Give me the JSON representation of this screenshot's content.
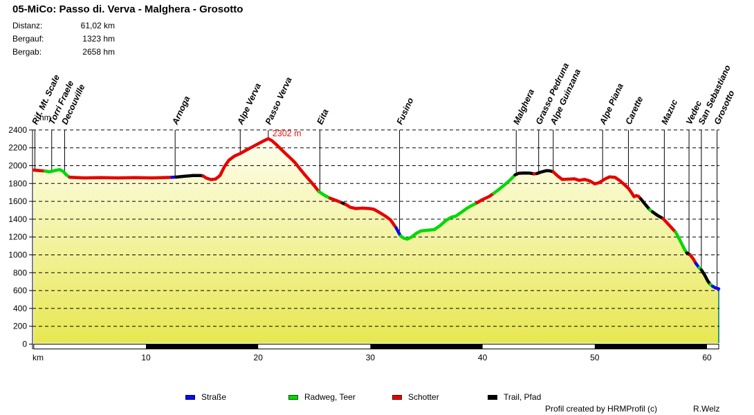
{
  "header": {
    "title": "05-MiCo: Passo di. Verva - Malghera - Grosotto",
    "stats": [
      {
        "label": "Distanz:",
        "value": "61,02 km"
      },
      {
        "label": "Bergauf:",
        "value": "1323 hm"
      },
      {
        "label": "Bergab:",
        "value": "2658 hm"
      }
    ]
  },
  "chart_data": {
    "type": "area",
    "xlabel": "km",
    "ylabel": "hm",
    "xlim": [
      0,
      61.1
    ],
    "ylim": [
      0,
      2400
    ],
    "x_ticks": [
      10,
      20,
      30,
      40,
      50,
      60
    ],
    "y_ticks": [
      0,
      200,
      400,
      600,
      800,
      1000,
      1200,
      1400,
      1600,
      1800,
      2000,
      2200,
      2400
    ],
    "grid": "horizontal-dashed",
    "peak_annotation": {
      "text": "2302 m",
      "km": 20.9,
      "hm": 2302,
      "color": "#ee1111"
    },
    "fill": {
      "top_color": "#fffff6",
      "bottom_color": "#e7e750",
      "edge_color": "#008080"
    },
    "surface_colors": {
      "strasse": "#0b0bee",
      "radweg": "#00d900",
      "schotter": "#e60000",
      "trail": "#000000"
    },
    "distance_bar_black_segments_km": [
      [
        10,
        20
      ],
      [
        30,
        40
      ],
      [
        50,
        60
      ]
    ],
    "waypoints": [
      {
        "name": "Rif. Mt. Scale",
        "km": 0.1,
        "hm": 1950
      },
      {
        "name": "Torri Fraele",
        "km": 1.6,
        "hm": 1942
      },
      {
        "name": "Decouville",
        "km": 2.75,
        "hm": 1912
      },
      {
        "name": "Arnoga",
        "km": 12.6,
        "hm": 1870
      },
      {
        "name": "Alpe Verva",
        "km": 18.4,
        "hm": 2136
      },
      {
        "name": "Passo Verva",
        "km": 20.9,
        "hm": 2302
      },
      {
        "name": "Eita",
        "km": 25.5,
        "hm": 1702
      },
      {
        "name": "Fusino",
        "km": 32.6,
        "hm": 1232
      },
      {
        "name": "Malghera",
        "km": 43.0,
        "hm": 1908
      },
      {
        "name": "Grasso Pedruna",
        "km": 45.0,
        "hm": 1922
      },
      {
        "name": "Alpe Guinzana",
        "km": 46.3,
        "hm": 1930
      },
      {
        "name": "Alpe Piana",
        "km": 50.7,
        "hm": 1822
      },
      {
        "name": "Carette",
        "km": 53.0,
        "hm": 1746
      },
      {
        "name": "Mazuc",
        "km": 56.2,
        "hm": 1400
      },
      {
        "name": "Vedec",
        "km": 58.4,
        "hm": 1005
      },
      {
        "name": "San Sebastiano",
        "km": 59.5,
        "hm": 825
      },
      {
        "name": "Grosotto",
        "km": 60.9,
        "hm": 622
      }
    ],
    "segments": [
      {
        "surface": "schotter",
        "points": [
          [
            0,
            1950
          ],
          [
            0.6,
            1944
          ],
          [
            1.0,
            1940
          ]
        ]
      },
      {
        "surface": "radweg",
        "points": [
          [
            1.0,
            1940
          ],
          [
            1.4,
            1931
          ],
          [
            1.9,
            1946
          ],
          [
            2.3,
            1956
          ],
          [
            2.6,
            1938
          ],
          [
            2.9,
            1898
          ],
          [
            3.2,
            1870
          ]
        ]
      },
      {
        "surface": "schotter",
        "points": [
          [
            3.2,
            1870
          ],
          [
            4.5,
            1863
          ],
          [
            6,
            1866
          ],
          [
            7.5,
            1862
          ],
          [
            9,
            1866
          ],
          [
            10.5,
            1863
          ],
          [
            11.5,
            1866
          ],
          [
            12.3,
            1869
          ]
        ]
      },
      {
        "surface": "strasse",
        "points": [
          [
            12.3,
            1869
          ],
          [
            12.7,
            1872
          ]
        ]
      },
      {
        "surface": "trail",
        "points": [
          [
            12.7,
            1872
          ],
          [
            13.4,
            1881
          ],
          [
            14.2,
            1890
          ],
          [
            14.9,
            1889
          ],
          [
            15.1,
            1884
          ]
        ]
      },
      {
        "surface": "schotter",
        "points": [
          [
            15.1,
            1884
          ],
          [
            15.4,
            1860
          ],
          [
            15.8,
            1844
          ],
          [
            16.2,
            1850
          ],
          [
            16.6,
            1890
          ],
          [
            17.0,
            1990
          ],
          [
            17.4,
            2062
          ],
          [
            17.9,
            2108
          ],
          [
            18.4,
            2136
          ],
          [
            19.0,
            2178
          ],
          [
            19.5,
            2212
          ],
          [
            20.0,
            2245
          ],
          [
            20.5,
            2278
          ],
          [
            20.9,
            2302
          ],
          [
            21.2,
            2282
          ],
          [
            21.6,
            2238
          ],
          [
            22.0,
            2190
          ],
          [
            22.5,
            2128
          ],
          [
            22.9,
            2082
          ],
          [
            23.3,
            2032
          ],
          [
            23.7,
            1968
          ],
          [
            24.1,
            1906
          ],
          [
            24.5,
            1848
          ],
          [
            25.0,
            1775
          ],
          [
            25.4,
            1710
          ]
        ]
      },
      {
        "surface": "radweg",
        "points": [
          [
            25.4,
            1710
          ],
          [
            25.9,
            1668
          ],
          [
            26.4,
            1636
          ]
        ]
      },
      {
        "surface": "schotter",
        "points": [
          [
            26.4,
            1636
          ],
          [
            27.0,
            1608
          ],
          [
            27.5,
            1582
          ]
        ]
      },
      {
        "surface": "trail",
        "points": [
          [
            27.5,
            1582
          ],
          [
            27.8,
            1566
          ]
        ]
      },
      {
        "surface": "schotter",
        "points": [
          [
            27.8,
            1566
          ],
          [
            28.2,
            1534
          ],
          [
            28.7,
            1519
          ],
          [
            29.3,
            1524
          ],
          [
            29.9,
            1519
          ],
          [
            30.3,
            1512
          ],
          [
            30.8,
            1476
          ],
          [
            31.3,
            1438
          ],
          [
            31.8,
            1392
          ],
          [
            32.1,
            1338
          ],
          [
            32.3,
            1302
          ]
        ]
      },
      {
        "surface": "strasse",
        "points": [
          [
            32.3,
            1302
          ],
          [
            32.5,
            1256
          ],
          [
            32.7,
            1212
          ]
        ]
      },
      {
        "surface": "radweg",
        "points": [
          [
            32.7,
            1212
          ],
          [
            33.0,
            1186
          ],
          [
            33.3,
            1177
          ],
          [
            33.7,
            1202
          ],
          [
            34.1,
            1242
          ],
          [
            34.5,
            1268
          ],
          [
            35.1,
            1276
          ],
          [
            35.7,
            1284
          ],
          [
            36.2,
            1326
          ],
          [
            36.7,
            1382
          ],
          [
            37.2,
            1422
          ],
          [
            37.6,
            1433
          ],
          [
            38.1,
            1477
          ],
          [
            38.6,
            1522
          ],
          [
            39.1,
            1557
          ],
          [
            39.5,
            1584
          ]
        ]
      },
      {
        "surface": "schotter",
        "points": [
          [
            39.5,
            1584
          ],
          [
            40.0,
            1620
          ],
          [
            40.6,
            1655
          ],
          [
            41.0,
            1690
          ]
        ]
      },
      {
        "surface": "radweg",
        "points": [
          [
            41.0,
            1690
          ],
          [
            41.5,
            1738
          ],
          [
            42.0,
            1788
          ],
          [
            42.5,
            1844
          ],
          [
            42.9,
            1896
          ]
        ]
      },
      {
        "surface": "trail",
        "points": [
          [
            42.9,
            1896
          ],
          [
            43.2,
            1914
          ],
          [
            43.7,
            1918
          ],
          [
            44.2,
            1916
          ],
          [
            44.6,
            1908
          ]
        ]
      },
      {
        "surface": "schotter",
        "points": [
          [
            44.6,
            1908
          ],
          [
            44.85,
            1912
          ]
        ]
      },
      {
        "surface": "trail",
        "points": [
          [
            44.85,
            1912
          ],
          [
            45.2,
            1928
          ],
          [
            45.7,
            1944
          ],
          [
            46.0,
            1942
          ],
          [
            46.3,
            1930
          ]
        ]
      },
      {
        "surface": "schotter",
        "points": [
          [
            46.3,
            1930
          ],
          [
            46.7,
            1884
          ],
          [
            47.1,
            1846
          ],
          [
            47.7,
            1849
          ],
          [
            48.2,
            1853
          ],
          [
            48.6,
            1836
          ],
          [
            49.1,
            1846
          ],
          [
            49.6,
            1826
          ],
          [
            50.0,
            1796
          ],
          [
            50.4,
            1810
          ],
          [
            50.9,
            1850
          ],
          [
            51.3,
            1874
          ],
          [
            51.8,
            1869
          ],
          [
            52.2,
            1836
          ],
          [
            52.6,
            1792
          ],
          [
            53.0,
            1746
          ],
          [
            53.3,
            1692
          ],
          [
            53.5,
            1652
          ],
          [
            53.7,
            1664
          ],
          [
            53.9,
            1656
          ],
          [
            54.1,
            1628
          ]
        ]
      },
      {
        "surface": "trail",
        "points": [
          [
            54.1,
            1628
          ],
          [
            54.5,
            1566
          ],
          [
            54.9,
            1506
          ]
        ]
      },
      {
        "surface": "radweg",
        "points": [
          [
            54.9,
            1506
          ],
          [
            55.15,
            1482
          ]
        ]
      },
      {
        "surface": "trail",
        "points": [
          [
            55.15,
            1482
          ],
          [
            55.6,
            1442
          ],
          [
            56.1,
            1406
          ]
        ]
      },
      {
        "surface": "schotter",
        "points": [
          [
            56.1,
            1406
          ],
          [
            56.5,
            1352
          ],
          [
            56.9,
            1296
          ],
          [
            57.2,
            1256
          ]
        ]
      },
      {
        "surface": "radweg",
        "points": [
          [
            57.2,
            1256
          ],
          [
            57.6,
            1162
          ],
          [
            58.0,
            1062
          ],
          [
            58.2,
            1022
          ]
        ]
      },
      {
        "surface": "trail",
        "points": [
          [
            58.2,
            1022
          ],
          [
            58.5,
            1000
          ]
        ]
      },
      {
        "surface": "schotter",
        "points": [
          [
            58.5,
            1000
          ],
          [
            58.8,
            952
          ],
          [
            59.0,
            906
          ]
        ]
      },
      {
        "surface": "strasse",
        "points": [
          [
            59.0,
            906
          ],
          [
            59.3,
            856
          ]
        ]
      },
      {
        "surface": "radweg",
        "points": [
          [
            59.3,
            856
          ],
          [
            59.5,
            832
          ]
        ]
      },
      {
        "surface": "trail",
        "points": [
          [
            59.5,
            832
          ],
          [
            59.8,
            772
          ],
          [
            60.1,
            702
          ],
          [
            60.3,
            668
          ]
        ]
      },
      {
        "surface": "radweg",
        "points": [
          [
            60.3,
            668
          ],
          [
            60.5,
            648
          ]
        ]
      },
      {
        "surface": "strasse",
        "points": [
          [
            60.5,
            648
          ],
          [
            60.8,
            628
          ],
          [
            61.05,
            620
          ]
        ]
      }
    ]
  },
  "legend": {
    "items": [
      {
        "label": "Straße",
        "surface": "strasse",
        "color": "#0b0bee",
        "border": "#000080"
      },
      {
        "label": "Radweg, Teer",
        "surface": "radweg",
        "color": "#00d900",
        "border": "#005500"
      },
      {
        "label": "Schotter",
        "surface": "schotter",
        "color": "#e60000",
        "border": "#700000"
      },
      {
        "label": "Trail, Pfad",
        "surface": "trail",
        "color": "#000000",
        "border": "#000000"
      }
    ]
  },
  "footer": {
    "credit": "Profil created by HRMProfil (c)",
    "author": "R.Welz"
  }
}
